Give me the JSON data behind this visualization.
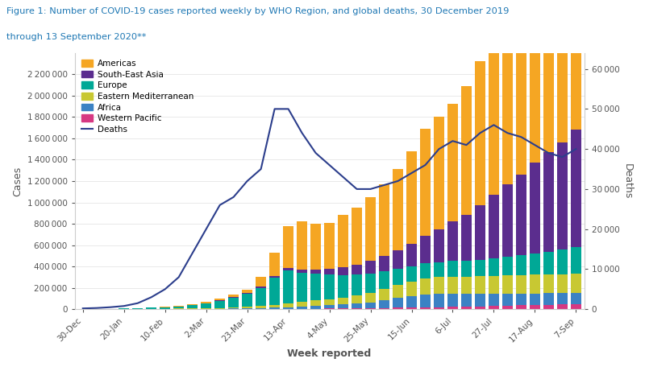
{
  "title_line1": "Figure 1: Number of COVID-19 cases reported weekly by WHO Region, and global deaths, 30 December 2019",
  "title_line2": "through 13 September 2020**",
  "title_color": "#1F78B4",
  "xlabel": "Week reported",
  "ylabel_left": "Cases",
  "ylabel_right": "Deaths",
  "x_labels": [
    "30-Dec",
    "20-Jan",
    "10-Feb",
    "2-Mar",
    "23-Mar",
    "13-Apr",
    "4-May",
    "25-May",
    "15-Jun",
    "6-Jul",
    "27-Jul",
    "17-Aug",
    "7-Sep"
  ],
  "colors": {
    "Americas": "#F5A623",
    "South-East Asia": "#5B2D8E",
    "Europe": "#00A896",
    "Eastern Mediterranean": "#C8C832",
    "Africa": "#3B82C4",
    "Western Pacific": "#D63882"
  },
  "deaths_color": "#2C3E8C",
  "n_bars": 37,
  "americas": [
    200,
    300,
    500,
    800,
    1200,
    2000,
    3500,
    6000,
    10000,
    15000,
    20000,
    25000,
    35000,
    90000,
    220000,
    390000,
    450000,
    430000,
    430000,
    490000,
    540000,
    600000,
    670000,
    760000,
    870000,
    1000000,
    1050000,
    1100000,
    1200000,
    1350000,
    1450000,
    1530000,
    1600000,
    1700000,
    1750000,
    1820000,
    1900000
  ],
  "south_east_asia": [
    100,
    150,
    200,
    300,
    500,
    800,
    1200,
    1800,
    2500,
    3500,
    5000,
    7000,
    8000,
    10000,
    15000,
    22000,
    30000,
    40000,
    55000,
    70000,
    90000,
    115000,
    145000,
    175000,
    210000,
    260000,
    310000,
    370000,
    430000,
    510000,
    590000,
    680000,
    760000,
    850000,
    930000,
    1000000,
    1100000
  ],
  "europe": [
    500,
    800,
    1500,
    3000,
    5000,
    8000,
    13000,
    20000,
    30000,
    45000,
    65000,
    90000,
    120000,
    170000,
    250000,
    310000,
    270000,
    250000,
    230000,
    210000,
    195000,
    180000,
    165000,
    155000,
    145000,
    140000,
    140000,
    145000,
    150000,
    155000,
    165000,
    175000,
    185000,
    200000,
    215000,
    230000,
    250000
  ],
  "eastern_med": [
    50,
    80,
    120,
    200,
    400,
    700,
    1200,
    2000,
    3000,
    4500,
    7000,
    10000,
    14000,
    20000,
    28000,
    38000,
    46000,
    50000,
    55000,
    65000,
    75000,
    90000,
    105000,
    120000,
    135000,
    150000,
    155000,
    158000,
    162000,
    165000,
    168000,
    170000,
    172000,
    174000,
    176000,
    178000,
    180000
  ],
  "africa": [
    20,
    30,
    50,
    80,
    120,
    200,
    350,
    600,
    1000,
    1800,
    3000,
    4500,
    6500,
    9000,
    12000,
    16000,
    20000,
    26000,
    32000,
    38000,
    45000,
    55000,
    70000,
    90000,
    105000,
    120000,
    125000,
    125000,
    120000,
    118000,
    115000,
    112000,
    110000,
    108000,
    106000,
    104000,
    102000
  ],
  "western_pacific": [
    800,
    1200,
    2000,
    3500,
    4500,
    4000,
    3500,
    3000,
    2800,
    2500,
    2200,
    2000,
    2000,
    2200,
    2500,
    3000,
    4000,
    5000,
    6000,
    7000,
    8500,
    10000,
    12000,
    14000,
    16000,
    18000,
    20000,
    22000,
    24000,
    27000,
    30000,
    33000,
    36000,
    40000,
    43000,
    46000,
    50000
  ],
  "deaths": [
    200,
    300,
    500,
    800,
    1500,
    3000,
    5000,
    8000,
    14000,
    20000,
    26000,
    28000,
    32000,
    35000,
    50000,
    50000,
    44000,
    39000,
    36000,
    33000,
    30000,
    30000,
    31000,
    32000,
    34000,
    36000,
    40000,
    42000,
    41000,
    44000,
    46000,
    44000,
    43000,
    41000,
    39000,
    38000,
    40000
  ],
  "ylim_cases": [
    0,
    2400000
  ],
  "ylim_deaths": [
    0,
    64000
  ],
  "yticks_cases": [
    0,
    200000,
    400000,
    600000,
    800000,
    1000000,
    1200000,
    1400000,
    1600000,
    1800000,
    2000000,
    2200000
  ],
  "yticks_deaths": [
    0,
    10000,
    20000,
    30000,
    40000,
    50000,
    60000
  ],
  "background_color": "#FFFFFF"
}
